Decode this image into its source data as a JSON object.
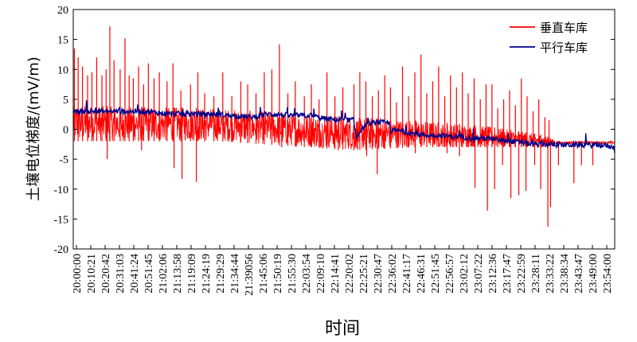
{
  "chart_data": {
    "type": "line",
    "title": "",
    "xlabel": "时间",
    "ylabel": "土壤电位梯度/(mV/m)",
    "ylim": [
      -20,
      20
    ],
    "yticks": [
      -20,
      -15,
      -10,
      -5,
      0,
      5,
      10,
      15,
      20
    ],
    "xrange": [
      "20:00:00",
      "23:59:00"
    ],
    "xtick_labels": [
      "20:00:00",
      "20:10:21",
      "20:20:42",
      "20:31:03",
      "20:41:24",
      "20:51:45",
      "21:02:06",
      "21:13:58",
      "21:19:09",
      "21:24:19",
      "21:29:29",
      "21:34:44",
      "21:39056",
      "21:45:06",
      "21:50:19",
      "21:55:30",
      "22:03:54",
      "22:09:10",
      "22:14:41",
      "22:20:02",
      "22:25:21",
      "22:30:47",
      "22:36:02",
      "22:41:17",
      "22:46:31",
      "22:51:45",
      "22:56:57",
      "23:02:12",
      "23:07:22",
      "23:12:36",
      "23:17:47",
      "23:22:59",
      "23:28:11",
      "23:33:22",
      "23:38:34",
      "23:43:47",
      "23:49:00",
      "23:54:00"
    ],
    "grid": false,
    "legend_position": "top-right",
    "series": [
      {
        "name": "垂直车库",
        "color": "#ff0000",
        "type": "spiky",
        "baseline": [
          [
            "20:00:00",
            0.0
          ],
          [
            "21:55:30",
            0.0
          ],
          [
            "22:03:54",
            -1.0
          ],
          [
            "22:20:02",
            -1.0
          ],
          [
            "22:30:47",
            -1.0
          ],
          [
            "22:51:45",
            -1.5
          ],
          [
            "23:12:36",
            -2.0
          ],
          [
            "23:28:11",
            -2.5
          ],
          [
            "23:59:00",
            -2.5
          ]
        ],
        "band": [
          [
            "20:00:00",
            -2.0,
            4.0
          ],
          [
            "21:03:54",
            -2.0,
            3.5
          ],
          [
            "22:03:54",
            -3.5,
            2.0
          ],
          [
            "22:30:47",
            -3.0,
            1.5
          ],
          [
            "23:02:12",
            -3.0,
            0.5
          ],
          [
            "23:28:11",
            -3.0,
            -1.0
          ],
          [
            "23:33:22",
            -2.5,
            -2.0
          ],
          [
            "23:59:00",
            -2.5,
            -2.0
          ]
        ],
        "spikes_up": [
          [
            "20:00:30",
            13.5
          ],
          [
            "20:02:10",
            12.0
          ],
          [
            "20:04:05",
            10.5
          ],
          [
            "20:06:20",
            9.0
          ],
          [
            "20:08:15",
            9.5
          ],
          [
            "20:10:21",
            12.0
          ],
          [
            "20:12:40",
            9.0
          ],
          [
            "20:14:30",
            10.0
          ],
          [
            "20:16:10",
            17.2
          ],
          [
            "20:18:00",
            11.5
          ],
          [
            "20:20:42",
            10.0
          ],
          [
            "20:22:50",
            15.2
          ],
          [
            "20:24:40",
            9.0
          ],
          [
            "20:26:30",
            8.5
          ],
          [
            "20:28:50",
            10.5
          ],
          [
            "20:31:03",
            7.5
          ],
          [
            "20:33:10",
            11.0
          ],
          [
            "20:35:40",
            8.5
          ],
          [
            "20:38:00",
            9.5
          ],
          [
            "20:41:24",
            8.0
          ],
          [
            "20:44:00",
            11.0
          ],
          [
            "20:47:30",
            6.5
          ],
          [
            "20:51:45",
            7.5
          ],
          [
            "20:55:00",
            9.5
          ],
          [
            "20:58:00",
            6.0
          ],
          [
            "21:02:06",
            5.5
          ],
          [
            "21:06:00",
            9.5
          ],
          [
            "21:10:00",
            5.5
          ],
          [
            "21:13:58",
            8.0
          ],
          [
            "21:17:00",
            7.5
          ],
          [
            "21:20:40",
            6.0
          ],
          [
            "21:24:19",
            9.5
          ],
          [
            "21:27:40",
            10.0
          ],
          [
            "21:31:00",
            14.2
          ],
          [
            "21:34:44",
            6.0
          ],
          [
            "21:38:00",
            8.0
          ],
          [
            "21:42:00",
            5.5
          ],
          [
            "21:45:06",
            7.5
          ],
          [
            "21:48:30",
            5.0
          ],
          [
            "21:52:00",
            9.5
          ],
          [
            "21:55:30",
            5.5
          ],
          [
            "21:59:00",
            7.0
          ],
          [
            "22:03:54",
            7.5
          ],
          [
            "22:06:30",
            9.5
          ],
          [
            "22:09:10",
            8.0
          ],
          [
            "22:12:00",
            5.5
          ],
          [
            "22:14:41",
            6.5
          ],
          [
            "22:17:30",
            9.0
          ],
          [
            "22:20:02",
            7.0
          ],
          [
            "22:22:40",
            4.5
          ],
          [
            "22:25:21",
            10.5
          ],
          [
            "22:28:00",
            5.5
          ],
          [
            "22:30:47",
            9.5
          ],
          [
            "22:33:30",
            12.5
          ],
          [
            "22:36:02",
            6.0
          ],
          [
            "22:38:40",
            8.0
          ],
          [
            "22:41:17",
            10.5
          ],
          [
            "22:44:00",
            5.5
          ],
          [
            "22:46:31",
            9.0
          ],
          [
            "22:49:10",
            7.0
          ],
          [
            "22:51:45",
            9.5
          ],
          [
            "22:54:20",
            6.0
          ],
          [
            "22:56:57",
            8.5
          ],
          [
            "22:59:40",
            5.0
          ],
          [
            "23:02:12",
            7.5
          ],
          [
            "23:04:50",
            7.5
          ],
          [
            "23:07:22",
            3.5
          ],
          [
            "23:10:00",
            5.0
          ],
          [
            "23:12:36",
            6.5
          ],
          [
            "23:15:10",
            4.0
          ],
          [
            "23:17:47",
            8.5
          ],
          [
            "23:20:20",
            5.5
          ],
          [
            "23:22:59",
            3.0
          ],
          [
            "23:25:30",
            5.0
          ],
          [
            "23:28:11",
            2.0
          ],
          [
            "23:30:00",
            1.5
          ]
        ],
        "spikes_down": [
          [
            "20:15:00",
            -5.0
          ],
          [
            "20:30:10",
            -3.5
          ],
          [
            "20:44:30",
            -6.5
          ],
          [
            "20:48:00",
            -8.3
          ],
          [
            "20:54:20",
            -8.8
          ],
          [
            "21:32:00",
            -3.0
          ],
          [
            "21:57:00",
            -3.5
          ],
          [
            "22:09:30",
            -4.5
          ],
          [
            "22:14:10",
            -7.5
          ],
          [
            "22:31:00",
            -4.0
          ],
          [
            "22:45:00",
            -4.0
          ],
          [
            "22:50:30",
            -4.5
          ],
          [
            "22:57:20",
            -9.8
          ],
          [
            "23:02:50",
            -13.6
          ],
          [
            "23:06:00",
            -10.0
          ],
          [
            "23:09:30",
            -6.0
          ],
          [
            "23:13:10",
            -11.5
          ],
          [
            "23:16:40",
            -11.0
          ],
          [
            "23:19:50",
            -10.3
          ],
          [
            "23:23:40",
            -6.0
          ],
          [
            "23:26:20",
            -10.0
          ],
          [
            "23:29:30",
            -16.3
          ],
          [
            "23:30:40",
            -13.0
          ],
          [
            "23:34:10",
            -6.0
          ],
          [
            "23:41:00",
            -9.0
          ],
          [
            "23:44:20",
            -6.0
          ],
          [
            "23:49:20",
            -6.0
          ]
        ]
      },
      {
        "name": "平行车库",
        "color": "#00008b",
        "type": "noisy-step",
        "points": [
          [
            "20:00:00",
            3.0
          ],
          [
            "20:10:21",
            3.0
          ],
          [
            "20:20:42",
            3.0
          ],
          [
            "20:31:03",
            3.0
          ],
          [
            "20:41:24",
            2.6
          ],
          [
            "20:51:45",
            2.6
          ],
          [
            "21:02:06",
            2.5
          ],
          [
            "21:13:58",
            2.2
          ],
          [
            "21:19:09",
            2.0
          ],
          [
            "21:24:19",
            2.5
          ],
          [
            "21:29:29",
            2.5
          ],
          [
            "21:34:44",
            2.3
          ],
          [
            "21:39:56",
            2.3
          ],
          [
            "21:45:06",
            2.3
          ],
          [
            "21:50:19",
            1.8
          ],
          [
            "21:55:30",
            1.6
          ],
          [
            "22:03:54",
            1.5
          ],
          [
            "22:05:00",
            -1.5
          ],
          [
            "22:06:30",
            -0.5
          ],
          [
            "22:09:10",
            0.8
          ],
          [
            "22:14:41",
            1.2
          ],
          [
            "22:19:30",
            1.0
          ],
          [
            "22:20:02",
            -0.2
          ],
          [
            "22:25:21",
            -0.3
          ],
          [
            "22:30:47",
            -0.8
          ],
          [
            "22:36:02",
            -1.0
          ],
          [
            "22:41:17",
            -1.0
          ],
          [
            "22:46:31",
            -1.2
          ],
          [
            "22:51:45",
            -1.3
          ],
          [
            "22:56:57",
            -1.5
          ],
          [
            "23:02:12",
            -1.5
          ],
          [
            "23:07:22",
            -1.8
          ],
          [
            "23:12:36",
            -2.0
          ],
          [
            "23:17:47",
            -2.2
          ],
          [
            "23:22:59",
            -2.5
          ],
          [
            "23:28:11",
            -2.5
          ],
          [
            "23:33:22",
            -2.6
          ],
          [
            "23:43:47",
            -2.6
          ],
          [
            "23:54:00",
            -2.7
          ],
          [
            "23:59:00",
            -3.0
          ]
        ]
      }
    ]
  }
}
